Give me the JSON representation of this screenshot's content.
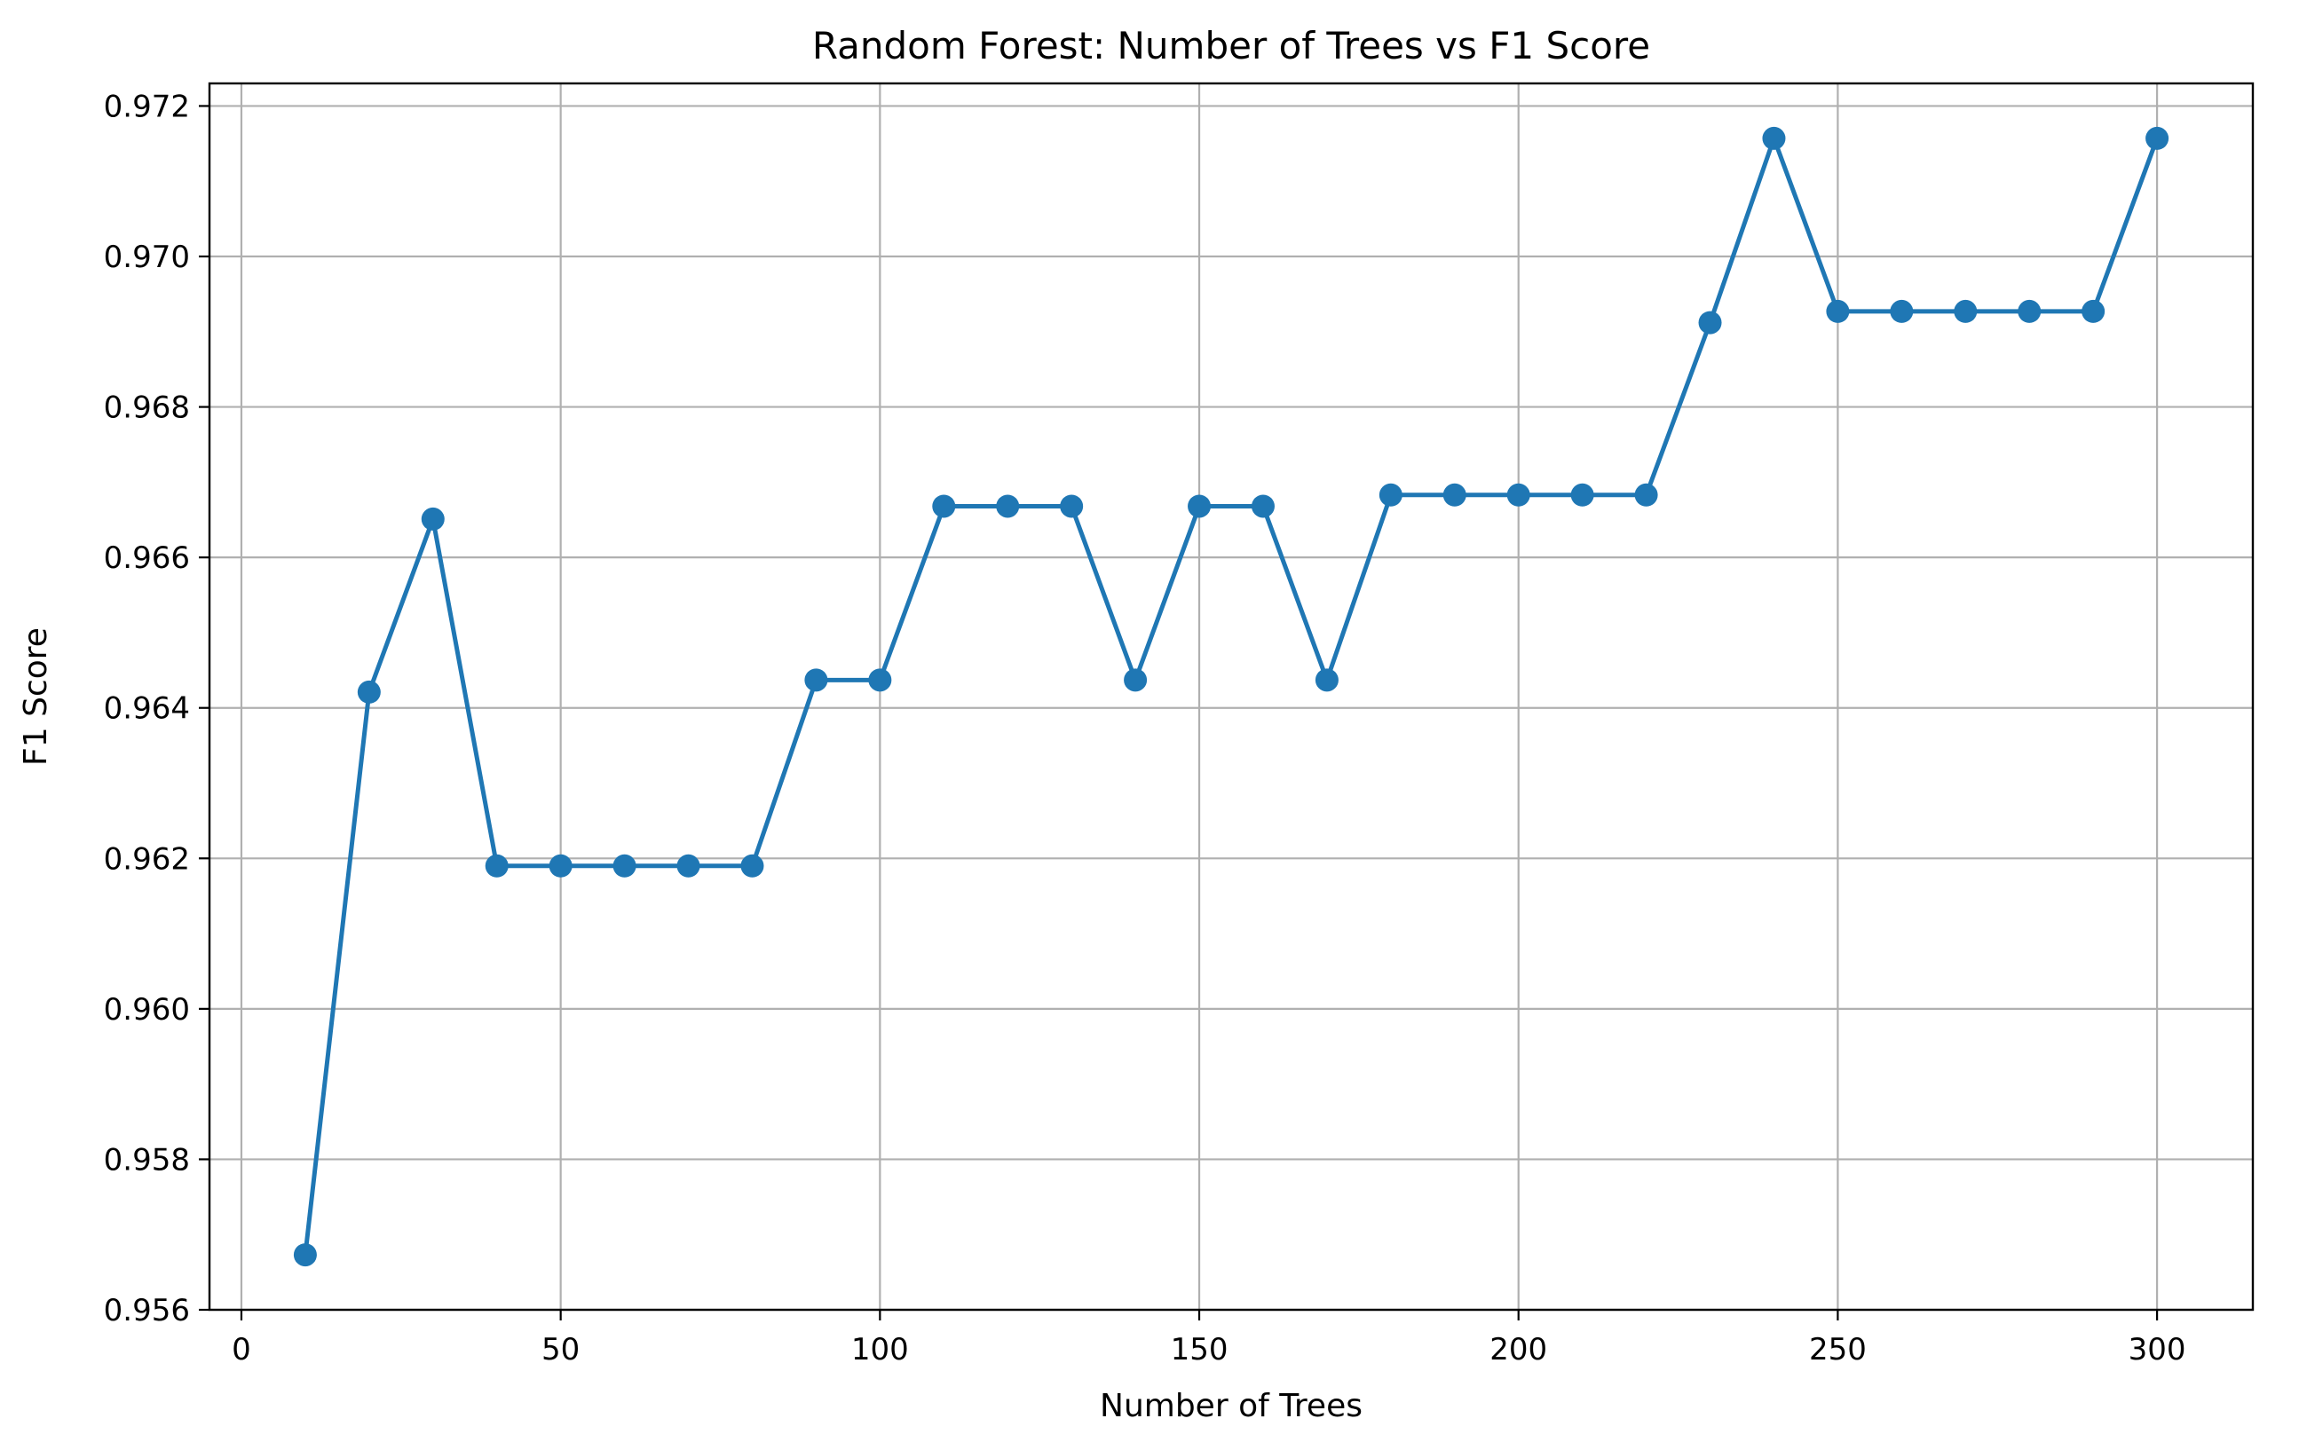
{
  "chart_data": {
    "type": "line",
    "title": "Random Forest: Number of Trees vs F1 Score",
    "xlabel": "Number of Trees",
    "ylabel": "F1 Score",
    "xlim": [
      -5,
      315
    ],
    "ylim": [
      0.956,
      0.9723
    ],
    "xticks": [
      0,
      50,
      100,
      150,
      200,
      250,
      300
    ],
    "yticks": [
      0.956,
      0.958,
      0.96,
      0.962,
      0.964,
      0.966,
      0.968,
      0.97,
      0.972
    ],
    "xtick_labels": [
      "0",
      "50",
      "100",
      "150",
      "200",
      "250",
      "300"
    ],
    "ytick_labels": [
      "0.956",
      "0.958",
      "0.960",
      "0.962",
      "0.964",
      "0.966",
      "0.968",
      "0.970",
      "0.972"
    ],
    "grid": true,
    "marker": "circle",
    "line_color": "#1f77b4",
    "series": [
      {
        "x": [
          10,
          20,
          30,
          40,
          50,
          60,
          70,
          80,
          90,
          100,
          110,
          120,
          130,
          140,
          150,
          160,
          170,
          180,
          190,
          200,
          210,
          220,
          230,
          240,
          250,
          260,
          270,
          280,
          290,
          300
        ],
        "y": [
          0.95673,
          0.96421,
          0.96651,
          0.9619,
          0.9619,
          0.9619,
          0.9619,
          0.9619,
          0.96437,
          0.96437,
          0.96668,
          0.96668,
          0.96668,
          0.96437,
          0.96668,
          0.96668,
          0.96437,
          0.96683,
          0.96683,
          0.96683,
          0.96683,
          0.96683,
          0.96912,
          0.97157,
          0.96927,
          0.96927,
          0.96927,
          0.96927,
          0.96927,
          0.97157
        ]
      }
    ]
  }
}
